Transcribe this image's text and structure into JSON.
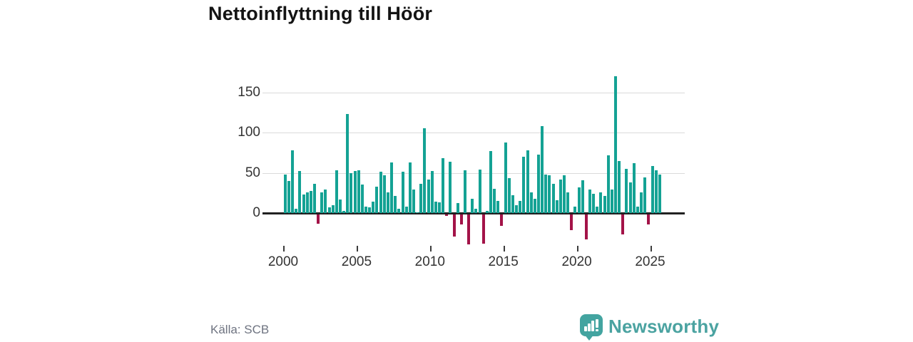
{
  "title": "Nettoinflyttning till Höör",
  "source": "Källa: SCB",
  "branding": {
    "name": "Newsworthy",
    "logo_color": "#43a4a0",
    "text_color": "#4ba3a1"
  },
  "colors": {
    "positive_bar": "#14a294",
    "negative_bar": "#a31348",
    "gridline": "#dadada",
    "zero_line": "#212121",
    "axis_text": "#333333",
    "title_text": "#141414",
    "source_text": "#6e7380"
  },
  "chart_data": {
    "type": "bar",
    "title": "Nettoinflyttning till Höör",
    "frequency": "quarterly",
    "start_period": "2000 Q1",
    "end_period": "2025 Q3",
    "xlabel": "",
    "ylabel": "",
    "ylim": [
      -45,
      180
    ],
    "y_ticks": [
      0,
      50,
      100,
      150
    ],
    "x_ticks": [
      2000,
      2005,
      2010,
      2015,
      2020,
      2025
    ],
    "grid": true,
    "legend": false,
    "values": [
      48,
      40,
      78,
      5,
      52,
      23,
      26,
      27,
      36,
      -12,
      26,
      29,
      7,
      10,
      53,
      17,
      3,
      123,
      50,
      52,
      53,
      35,
      8,
      7,
      14,
      33,
      51,
      47,
      26,
      63,
      21,
      5,
      51,
      8,
      63,
      29,
      1,
      36,
      105,
      42,
      52,
      14,
      13,
      68,
      -2,
      64,
      -28,
      12,
      -13,
      53,
      -38,
      18,
      5,
      54,
      -37,
      3,
      77,
      30,
      15,
      -15,
      88,
      43,
      22,
      10,
      15,
      70,
      78,
      26,
      18,
      73,
      108,
      48,
      47,
      36,
      16,
      42,
      47,
      26,
      -20,
      8,
      32,
      41,
      -31,
      29,
      24,
      8,
      26,
      21,
      72,
      29,
      170,
      65,
      -25,
      55,
      38,
      62,
      8,
      26,
      44,
      -13,
      58,
      53,
      48
    ]
  }
}
